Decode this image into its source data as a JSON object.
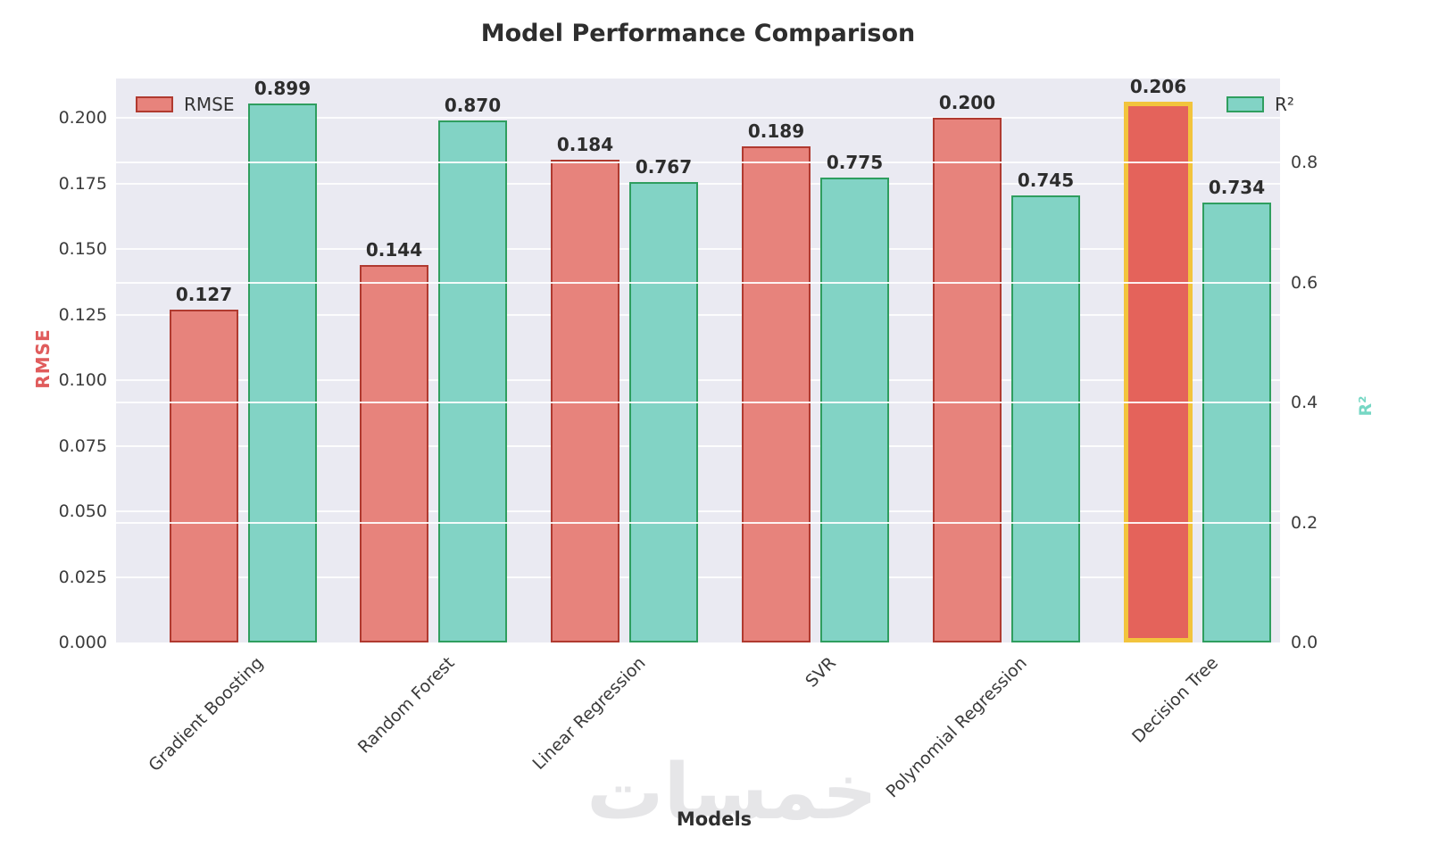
{
  "chart_data": {
    "type": "bar",
    "title": "Model Performance Comparison",
    "xlabel": "Models",
    "categories": [
      "Gradient Boosting",
      "Random Forest",
      "Linear Regression",
      "SVR",
      "Polynomial Regression",
      "Decision Tree"
    ],
    "series": [
      {
        "name": "RMSE",
        "axis": "left",
        "fill": "#e7837c",
        "edge": "#b03a30",
        "values": [
          0.127,
          0.144,
          0.184,
          0.189,
          0.2,
          0.206
        ]
      },
      {
        "name": "R²",
        "axis": "right",
        "fill": "#82d3c5",
        "edge": "#2f9e5f",
        "values": [
          0.899,
          0.87,
          0.767,
          0.775,
          0.745,
          0.734
        ]
      }
    ],
    "value_label_decimals": 3,
    "left_axis": {
      "label": "RMSE",
      "color": "#e05c5c",
      "ticks": [
        "0.000",
        "0.025",
        "0.050",
        "0.075",
        "0.100",
        "0.125",
        "0.150",
        "0.175",
        "0.200"
      ],
      "tick_values": [
        0,
        0.025,
        0.05,
        0.075,
        0.1,
        0.125,
        0.15,
        0.175,
        0.2
      ],
      "axis_max": 0.215
    },
    "right_axis": {
      "label": "R²",
      "color": "#76d7c4",
      "ticks": [
        "0.0",
        "0.2",
        "0.4",
        "0.6",
        "0.8"
      ],
      "tick_values": [
        0,
        0.2,
        0.4,
        0.6,
        0.8
      ],
      "axis_max": 0.94
    },
    "legend": [
      {
        "label": "RMSE",
        "position": "upper-left"
      },
      {
        "label": "R²",
        "position": "upper-right"
      }
    ],
    "highlight": {
      "series": "RMSE",
      "category": "Decision Tree",
      "index": 5,
      "fill": "#e4635b",
      "edge_color": "#f2c43d"
    },
    "grid": true,
    "plot_bg": "#eaeaf2"
  },
  "watermark": "خمسات"
}
